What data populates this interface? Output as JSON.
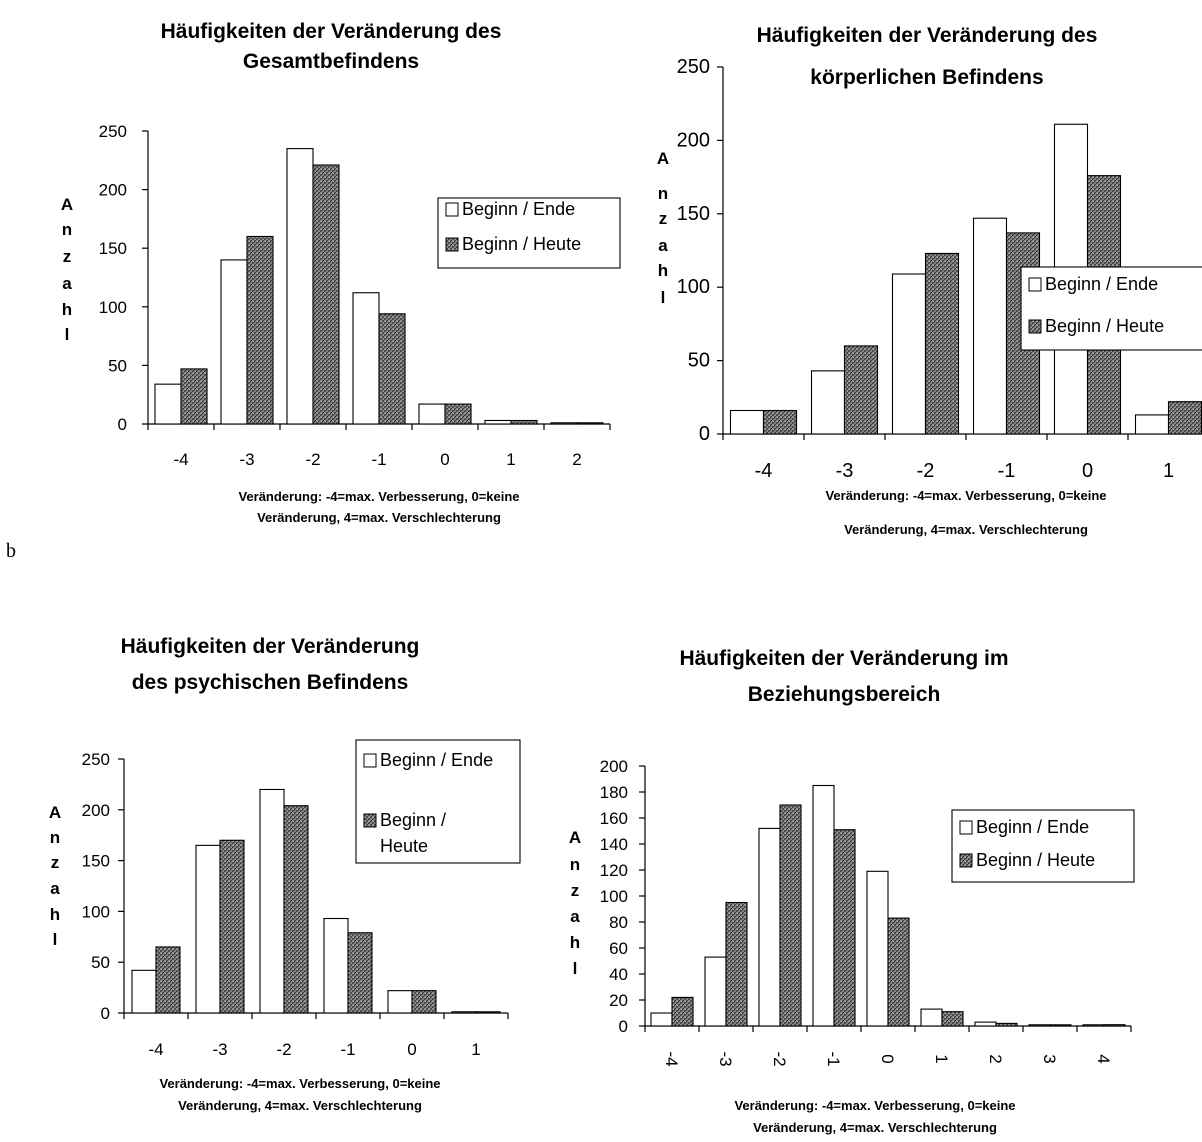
{
  "figure_label": "b",
  "colors": {
    "series_1": "#ffffff",
    "series_2": "#6f6f6f",
    "axis": "#000000"
  },
  "chart_data": [
    {
      "type": "bar",
      "title": [
        "Häufigkeiten der Veränderung des",
        "Gesamtbefindens"
      ],
      "categories": [
        "-4",
        "-3",
        "-2",
        "-1",
        "0",
        "1",
        "2"
      ],
      "series": [
        {
          "name": "Beginn / Ende",
          "values": [
            34,
            140,
            235,
            112,
            17,
            3,
            1
          ]
        },
        {
          "name": "Beginn / Heute",
          "values": [
            47,
            160,
            221,
            94,
            17,
            3,
            1
          ]
        }
      ],
      "ylabel": [
        "A",
        "n",
        "z",
        "a",
        "h",
        "l"
      ],
      "xlabel": [
        "Veränderung: -4=max. Verbesserung, 0=keine",
        "Veränderung, 4=max. Verschlechterung"
      ],
      "ylim": [
        0,
        250
      ],
      "yticks": [
        "0",
        "50",
        "100",
        "150",
        "200",
        "250"
      ],
      "legend": "right"
    },
    {
      "type": "bar",
      "title": [
        "Häufigkeiten der Veränderung des",
        "körperlichen Befindens"
      ],
      "categories": [
        "-4",
        "-3",
        "-2",
        "-1",
        "0",
        "1"
      ],
      "series": [
        {
          "name": "Beginn / Ende",
          "values": [
            16,
            43,
            109,
            147,
            211,
            13
          ]
        },
        {
          "name": "Beginn / Heute",
          "values": [
            16,
            60,
            123,
            137,
            176,
            22
          ]
        }
      ],
      "ylabel": [
        "A",
        "n",
        "z",
        "a",
        "h",
        "l"
      ],
      "xlabel": [
        "Veränderung: -4=max. Verbesserung, 0=keine",
        "Veränderung, 4=max. Verschlechterung"
      ],
      "ylim": [
        0,
        250
      ],
      "yticks": [
        "0",
        "50",
        "100",
        "150",
        "200",
        "250"
      ],
      "legend": "right"
    },
    {
      "type": "bar",
      "title": [
        "Häufigkeiten der Veränderung",
        "des psychischen Befindens"
      ],
      "categories": [
        "-4",
        "-3",
        "-2",
        "-1",
        "0",
        "1"
      ],
      "series": [
        {
          "name": "Beginn / Ende",
          "values": [
            42,
            165,
            220,
            93,
            22,
            1
          ]
        },
        {
          "name": "Beginn / Heute",
          "values": [
            65,
            170,
            204,
            79,
            22,
            1
          ]
        }
      ],
      "ylabel": [
        "A",
        "n",
        "z",
        "a",
        "h",
        "l"
      ],
      "xlabel": [
        "Veränderung: -4=max. Verbesserung, 0=keine",
        "Veränderung, 4=max. Verschlechterung"
      ],
      "ylim": [
        0,
        250
      ],
      "yticks": [
        "0",
        "50",
        "100",
        "150",
        "200",
        "250"
      ],
      "legend": "top-right"
    },
    {
      "type": "bar",
      "title": [
        "Häufigkeiten der Veränderung im",
        "Beziehungsbereich"
      ],
      "categories": [
        "-4",
        "-3",
        "-2",
        "-1",
        "0",
        "1",
        "2",
        "3",
        "4"
      ],
      "series": [
        {
          "name": "Beginn / Ende",
          "values": [
            10,
            53,
            152,
            185,
            119,
            13,
            3,
            0,
            0
          ]
        },
        {
          "name": "Beginn / Heute",
          "values": [
            22,
            95,
            170,
            151,
            83,
            11,
            2,
            0,
            1
          ]
        }
      ],
      "ylabel": [
        "A",
        "n",
        "z",
        "a",
        "h",
        "l"
      ],
      "xlabel": [
        "Veränderung: -4=max. Verbesserung, 0=keine",
        "Veränderung, 4=max. Verschlechterung"
      ],
      "ylim": [
        0,
        200
      ],
      "yticks": [
        "0",
        "20",
        "40",
        "60",
        "80",
        "100",
        "120",
        "140",
        "160",
        "180",
        "200"
      ],
      "legend": "right"
    }
  ]
}
